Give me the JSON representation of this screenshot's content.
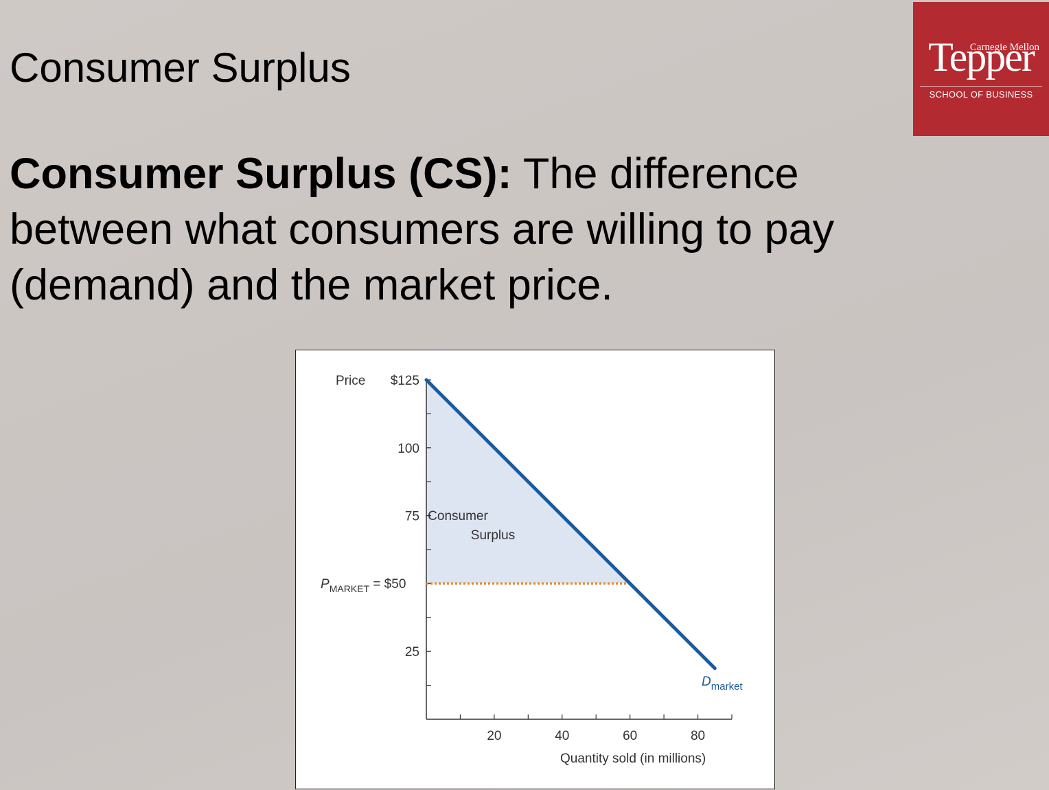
{
  "slide": {
    "title": "Consumer Surplus",
    "definition_bold": "Consumer Surplus (CS):",
    "definition_rest": " The difference between what consumers are willing to pay (demand) and the market price."
  },
  "logo": {
    "top_text": "Carnegie Mellon",
    "main_text": "Tepper",
    "bottom_text": "SCHOOL OF BUSINESS",
    "color": "#b32a31"
  },
  "chart_data": {
    "type": "line",
    "ylabel": "Price",
    "xlabel": "Quantity sold (in millions)",
    "x_ticks": [
      20,
      40,
      60,
      80
    ],
    "y_ticks": [
      {
        "value": 125,
        "label": "$125"
      },
      {
        "value": 100,
        "label": "100"
      },
      {
        "value": 75,
        "label": "75"
      },
      {
        "value": 25,
        "label": "25"
      }
    ],
    "xlim": [
      0,
      90
    ],
    "ylim": [
      0,
      125
    ],
    "series": [
      {
        "name": "D",
        "subscript": "market",
        "color": "#1a5a9e",
        "x": [
          0,
          85
        ],
        "y": [
          125,
          18.75
        ]
      }
    ],
    "market_price": {
      "label_main": "P",
      "label_sub": "MARKET",
      "label_value": " = $50",
      "value": 50,
      "quantity": 60,
      "color": "#e48a2a"
    },
    "shaded_area": {
      "label_line1": "Consumer",
      "label_line2": "Surplus",
      "fill": "#dde4f2"
    }
  }
}
